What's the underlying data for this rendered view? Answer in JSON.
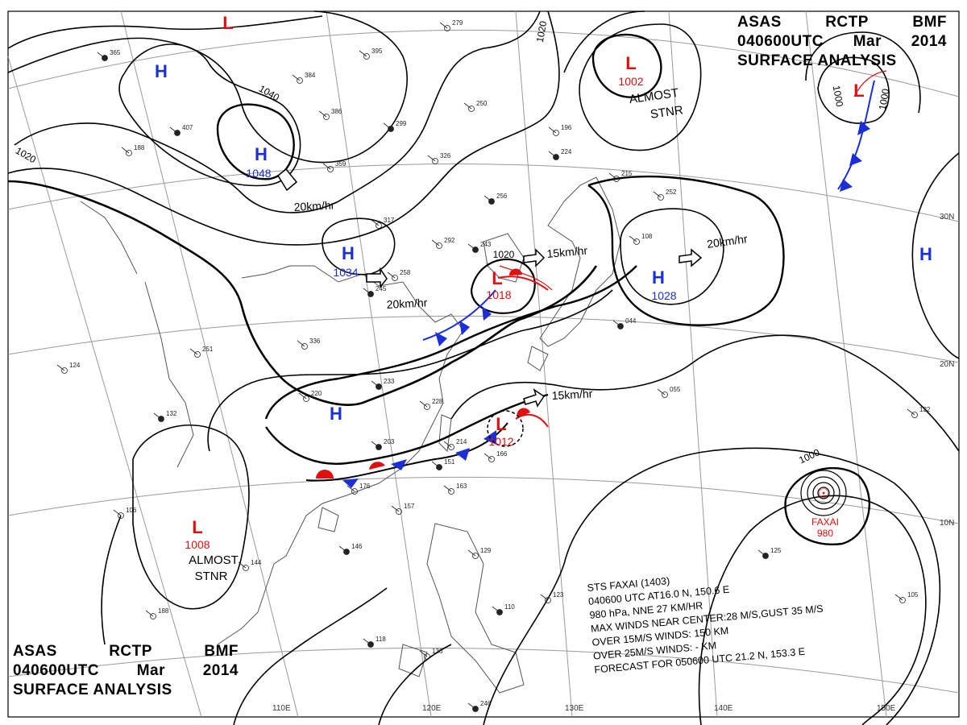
{
  "header": {
    "agency": "ASAS",
    "station": "RCTP",
    "code": "BMF",
    "datetime": "040600UTC",
    "month": "Mar",
    "year": "2014",
    "product": "SURFACE ANALYSIS"
  },
  "pressure_centers": [
    {
      "type": "H",
      "value": "1048"
    },
    {
      "type": "H",
      "value": "1034"
    },
    {
      "type": "H",
      "value": "1028"
    },
    {
      "type": "H",
      "value": ""
    },
    {
      "type": "H",
      "value": ""
    },
    {
      "type": "H",
      "value": ""
    },
    {
      "type": "L",
      "value": "1002",
      "note": "ALMOST STNR"
    },
    {
      "type": "L",
      "value": "1018"
    },
    {
      "type": "L",
      "value": "1012"
    },
    {
      "type": "L",
      "value": "1008",
      "note": "ALMOST STNR"
    },
    {
      "type": "L",
      "value": ""
    },
    {
      "type": "L",
      "value": ""
    }
  ],
  "isobar_labels": [
    "1040",
    "1020",
    "1020",
    "1020",
    "1000",
    "1000",
    "1000"
  ],
  "movements": [
    "20km/hr",
    "20km/hr",
    "20km/hr",
    "15km/hr",
    "15km/hr"
  ],
  "almost_stnr": [
    "ALMOST",
    "STNR"
  ],
  "typhoon": {
    "name": "FAXAI",
    "pressure": "980",
    "info_lines": [
      "STS  FAXAI  (1403)",
      "040600  UTC   AT16.0 N, 150.6 E",
      "980 hPa, NNE  27 KM/HR",
      "MAX WINDS NEAR CENTER:28 M/S,GUST 35 M/S",
      "OVER 15M/S WINDS: 150 KM",
      "OVER 25M/S WINDS: - KM",
      "FORECAST FOR 050600 UTC 21.2 N, 153.3 E"
    ]
  },
  "grid_labels": {
    "longitudes": [
      "110E",
      "120E",
      "130E",
      "140E",
      "150E"
    ],
    "latitudes": [
      "30N",
      "20N",
      "10N"
    ]
  },
  "station_samples": [
    "365",
    "384",
    "386",
    "407",
    "359",
    "395",
    "299",
    "326",
    "279",
    "256",
    "250",
    "196",
    "224",
    "215",
    "252",
    "243",
    "292",
    "258",
    "245",
    "317",
    "336",
    "233",
    "220",
    "228",
    "203",
    "214",
    "166",
    "151",
    "163",
    "157",
    "146",
    "144",
    "106",
    "132",
    "124",
    "188",
    "118",
    "136",
    "129",
    "110",
    "123",
    "105",
    "125",
    "122",
    "055",
    "044",
    "108",
    "176",
    "246",
    "251",
    "188"
  ],
  "colors": {
    "high": "#1a2fd6",
    "low": "#e01010",
    "isobar": "#000000",
    "grid": "#9a9a9a",
    "coast": "#555555",
    "cold_front": "#1a2fd6",
    "warm_front": "#e01010"
  }
}
